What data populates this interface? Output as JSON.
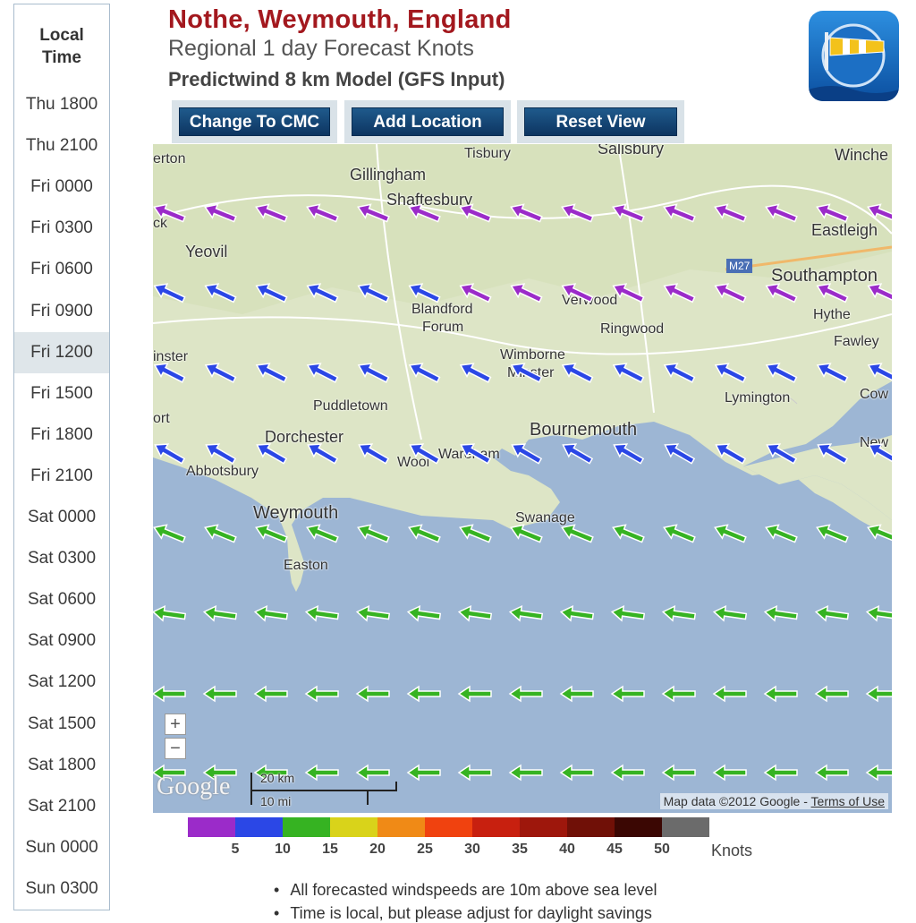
{
  "sidebar": {
    "header_line1": "Local",
    "header_line2": "Time",
    "times": [
      "Thu 1800",
      "Thu 2100",
      "Fri 0000",
      "Fri 0300",
      "Fri 0600",
      "Fri 0900",
      "Fri 1200",
      "Fri 1500",
      "Fri 1800",
      "Fri 2100",
      "Sat 0000",
      "Sat 0300",
      "Sat 0600",
      "Sat 0900",
      "Sat 1200",
      "Sat 1500",
      "Sat 1800",
      "Sat 2100",
      "Sun 0000",
      "Sun 0300"
    ],
    "selected": "Fri 1200"
  },
  "header": {
    "title": "Nothe, Weymouth, England",
    "subtitle": "Regional 1 day Forecast Knots",
    "model": "Predictwind 8 km Model (GFS Input)"
  },
  "buttons": {
    "change_model": "Change To CMC",
    "add_location": "Add Location",
    "reset_view": "Reset View"
  },
  "map": {
    "places": {
      "yeovil": "Yeovil",
      "gillingham": "Gillingham",
      "shaftesbury": "Shaftesbury",
      "tisbury": "Tisbury",
      "salisbury": "Salisbury",
      "winchester": "Winche",
      "eastleigh": "Eastleigh",
      "southampton": "Southampton",
      "hythe": "Hythe",
      "fawley": "Fawley",
      "blandford": "Blandford",
      "forum": "Forum",
      "verwood": "Verwood",
      "ringwood": "Ringwood",
      "wimborne": "Wimborne",
      "minster": "Minster",
      "puddletown": "Puddletown",
      "lymington": "Lymington",
      "cowes": "Cow",
      "bournemouth": "Bournemouth",
      "dorchester": "Dorchester",
      "abbotsbury": "Abbotsbury",
      "wool": "Wool",
      "wareham": "Wareham",
      "newport": "New",
      "weymouth": "Weymouth",
      "swanage": "Swanage",
      "easton": "Easton",
      "merton": "erton",
      "minster_left": "inster",
      "port": "ort",
      "ck": "ck",
      "motorway": "M27"
    },
    "zoom_in": "+",
    "zoom_out": "−",
    "scale_km": "20 km",
    "scale_mi": "10 mi",
    "google": "Google",
    "attribution": "Map data ©2012 Google - ",
    "terms": "Terms of Use",
    "wind_rows": [
      {
        "color": "purple",
        "angle": 22
      },
      {
        "color": "mixed",
        "angle": 25
      },
      {
        "color": "blue",
        "angle": 27
      },
      {
        "color": "blue",
        "angle": 30
      },
      {
        "color": "green",
        "angle": 22
      },
      {
        "color": "green",
        "angle": 8
      },
      {
        "color": "green",
        "angle": 0
      },
      {
        "color": "green",
        "angle": 0
      }
    ]
  },
  "legend": {
    "colors": [
      "#9b2bc9",
      "#2b47e6",
      "#36b322",
      "#d9d31a",
      "#f08a16",
      "#f0420f",
      "#c8200f",
      "#9e170c",
      "#701007",
      "#3b0703",
      "#6b6b6b"
    ],
    "labels": [
      "5",
      "10",
      "15",
      "20",
      "25",
      "30",
      "35",
      "40",
      "45",
      "50"
    ],
    "unit": "Knots"
  },
  "notes": [
    "All forecasted windspeeds are 10m above sea level",
    "Time is local, but please adjust for daylight savings"
  ]
}
